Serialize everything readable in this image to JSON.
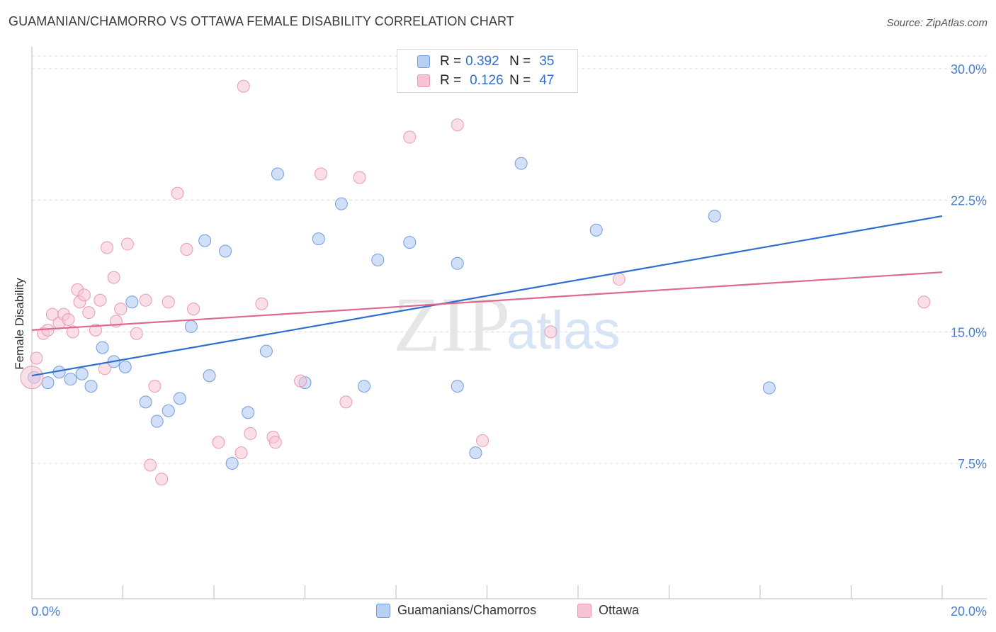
{
  "title": "GUAMANIAN/CHAMORRO VS OTTAWA FEMALE DISABILITY CORRELATION CHART",
  "source": "Source: ZipAtlas.com",
  "watermark": {
    "zip": "ZIP",
    "atlas": "atlas"
  },
  "legend": {
    "rows": [
      {
        "r_label": "R =",
        "r_value": "0.392",
        "n_label": "N =",
        "n_value": "35"
      },
      {
        "r_label": "R =",
        "r_value": "0.126",
        "n_label": "N =",
        "n_value": "47"
      }
    ]
  },
  "bottom_legend": {
    "series1": "Guamanians/Chamorros",
    "series2": "Ottawa"
  },
  "colors": {
    "blue_fill": "#b8d0f4",
    "blue_stroke": "#6f9de0",
    "blue_line": "#2d6fd0",
    "pink_fill": "#f8c4d4",
    "pink_stroke": "#e89ab3",
    "pink_line": "#e06890",
    "grid": "#dcdcdc",
    "tick_text": "#4a7fcf"
  },
  "chart_data": {
    "type": "scatter",
    "title": "GUAMANIAN/CHAMORRO VS OTTAWA FEMALE DISABILITY CORRELATION CHART",
    "xlabel": "",
    "ylabel": "Female Disability",
    "xlim": [
      0,
      20
    ],
    "ylim": [
      0,
      31.5
    ],
    "x_tick_labels": [
      "0.0%",
      "20.0%"
    ],
    "y_ticks": [
      7.5,
      15.0,
      22.5,
      30.0
    ],
    "y_tick_labels": [
      "7.5%",
      "15.0%",
      "22.5%",
      "30.0%"
    ],
    "grid": true,
    "legend_position": "top-center",
    "series": [
      {
        "name": "Guamanians/Chamorros",
        "color": "#b8d0f4",
        "points": [
          [
            0.05,
            12.4
          ],
          [
            0.35,
            12.1
          ],
          [
            0.6,
            12.7
          ],
          [
            0.85,
            12.3
          ],
          [
            1.1,
            12.6
          ],
          [
            1.3,
            11.9
          ],
          [
            1.55,
            14.1
          ],
          [
            1.8,
            13.3
          ],
          [
            2.05,
            13.0
          ],
          [
            2.2,
            16.7
          ],
          [
            2.5,
            11.0
          ],
          [
            2.75,
            9.9
          ],
          [
            3.0,
            10.5
          ],
          [
            3.25,
            11.2
          ],
          [
            3.5,
            15.3
          ],
          [
            3.8,
            20.2
          ],
          [
            3.9,
            12.5
          ],
          [
            4.25,
            19.6
          ],
          [
            4.4,
            7.5
          ],
          [
            4.75,
            10.4
          ],
          [
            5.15,
            13.9
          ],
          [
            5.4,
            24.0
          ],
          [
            6.0,
            12.1
          ],
          [
            6.3,
            20.3
          ],
          [
            6.8,
            22.3
          ],
          [
            7.3,
            11.9
          ],
          [
            7.6,
            19.1
          ],
          [
            8.3,
            20.1
          ],
          [
            9.35,
            11.9
          ],
          [
            9.35,
            18.9
          ],
          [
            9.75,
            8.1
          ],
          [
            10.75,
            24.6
          ],
          [
            12.4,
            20.8
          ],
          [
            15.0,
            21.6
          ],
          [
            16.2,
            11.8
          ]
        ]
      },
      {
        "name": "Ottawa",
        "color": "#f8c4d4",
        "points": [
          [
            0.1,
            13.5
          ],
          [
            0.25,
            14.9
          ],
          [
            0.35,
            15.1
          ],
          [
            0.45,
            16.0
          ],
          [
            0.6,
            15.5
          ],
          [
            0.7,
            16.0
          ],
          [
            0.8,
            15.7
          ],
          [
            0.9,
            15.0
          ],
          [
            1.0,
            17.4
          ],
          [
            1.05,
            16.7
          ],
          [
            1.15,
            17.1
          ],
          [
            1.25,
            16.1
          ],
          [
            1.4,
            15.1
          ],
          [
            1.5,
            16.8
          ],
          [
            1.6,
            12.9
          ],
          [
            1.65,
            19.8
          ],
          [
            1.8,
            18.1
          ],
          [
            1.85,
            15.6
          ],
          [
            1.95,
            16.3
          ],
          [
            2.1,
            20.0
          ],
          [
            2.3,
            14.9
          ],
          [
            2.5,
            16.8
          ],
          [
            2.6,
            7.4
          ],
          [
            2.7,
            11.9
          ],
          [
            2.85,
            6.6
          ],
          [
            3.0,
            16.7
          ],
          [
            3.2,
            22.9
          ],
          [
            3.4,
            19.7
          ],
          [
            3.55,
            16.3
          ],
          [
            4.1,
            8.7
          ],
          [
            4.6,
            8.1
          ],
          [
            4.65,
            29.0
          ],
          [
            4.8,
            9.2
          ],
          [
            5.05,
            16.6
          ],
          [
            5.3,
            9.0
          ],
          [
            5.35,
            8.7
          ],
          [
            5.9,
            12.2
          ],
          [
            6.35,
            24.0
          ],
          [
            6.9,
            11.0
          ],
          [
            7.2,
            23.8
          ],
          [
            8.3,
            26.1
          ],
          [
            9.35,
            26.8
          ],
          [
            9.9,
            8.8
          ],
          [
            11.4,
            15.0
          ],
          [
            12.9,
            18.0
          ],
          [
            19.6,
            16.7
          ],
          [
            0.0,
            12.4
          ]
        ]
      }
    ],
    "trendlines": [
      {
        "series": "Guamanians/Chamorros",
        "x": [
          0,
          20
        ],
        "y": [
          12.5,
          21.6
        ]
      },
      {
        "series": "Ottawa",
        "x": [
          0,
          20
        ],
        "y": [
          15.1,
          18.4
        ]
      }
    ]
  }
}
